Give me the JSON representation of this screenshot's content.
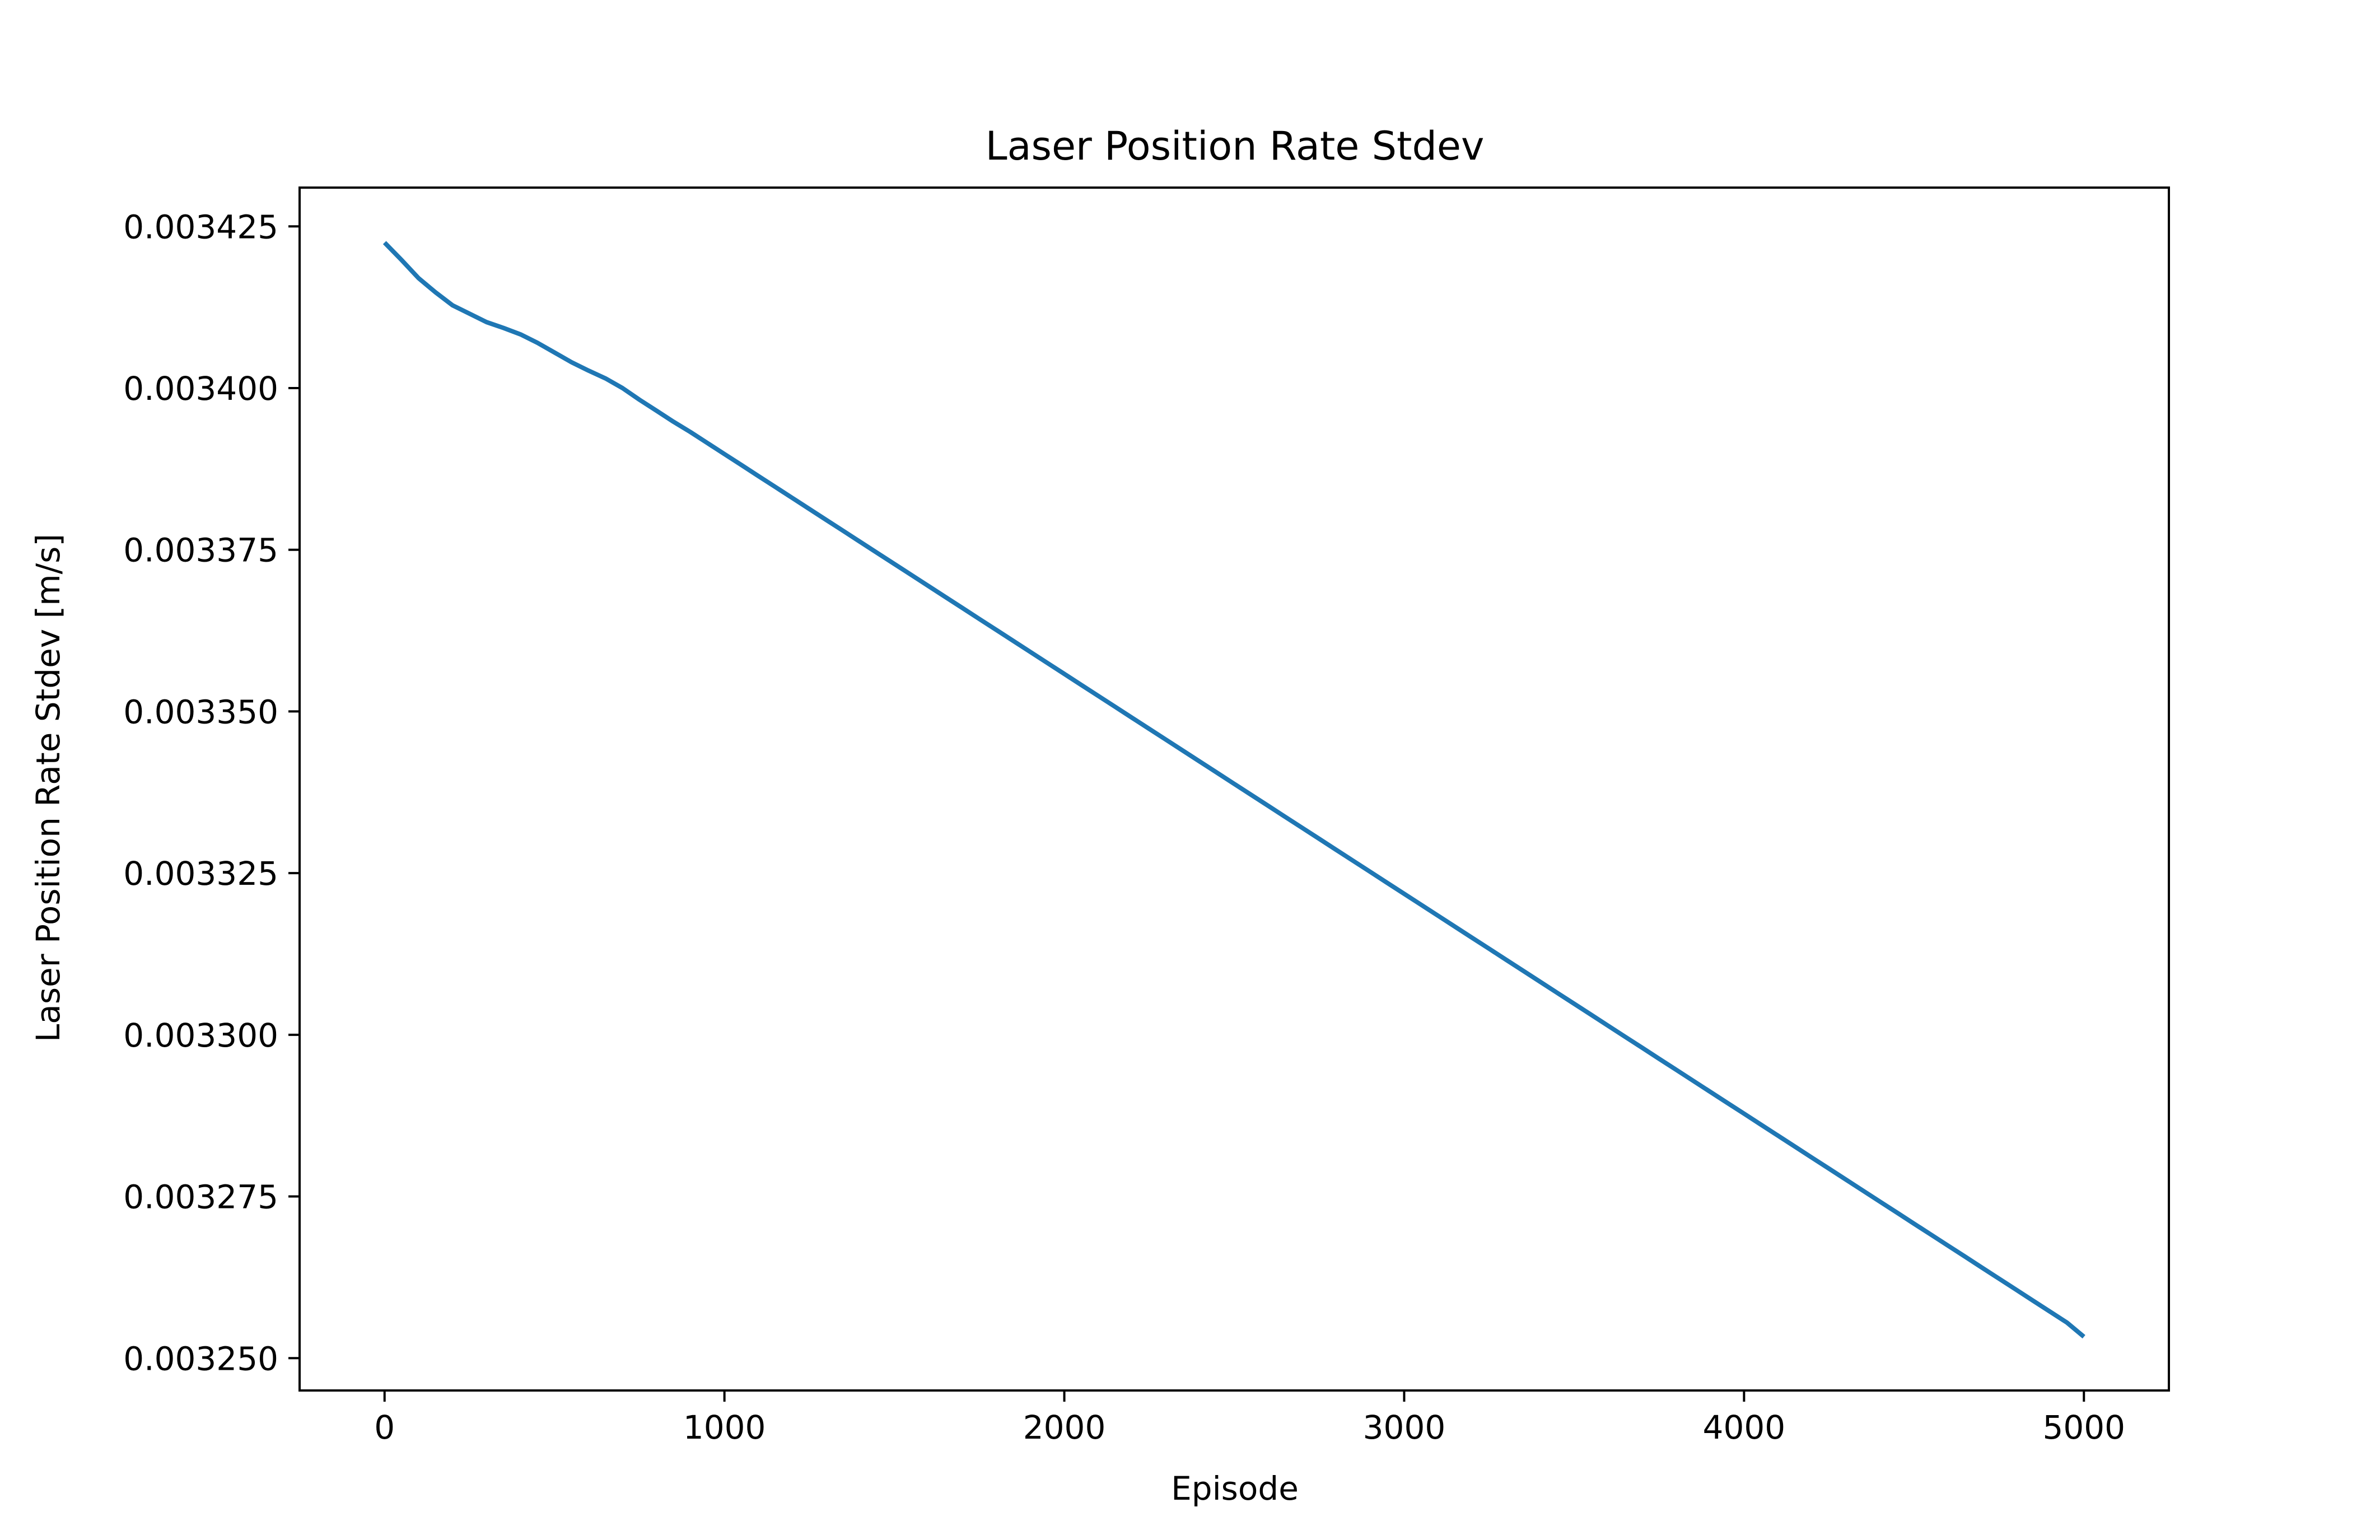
{
  "chart_data": {
    "type": "line",
    "title": "Laser Position Rate Stdev",
    "xlabel": "Episode",
    "ylabel": "Laser Position Rate Stdev [m/s]",
    "xlim": [
      -250,
      5250
    ],
    "ylim": [
      0.003245,
      0.003431
    ],
    "x_ticks": [
      0,
      1000,
      2000,
      3000,
      4000,
      5000
    ],
    "x_tick_labels": [
      "0",
      "1000",
      "2000",
      "3000",
      "4000",
      "5000"
    ],
    "y_ticks": [
      0.00325,
      0.003275,
      0.0033,
      0.003325,
      0.00335,
      0.003375,
      0.0034,
      0.003425
    ],
    "y_tick_labels": [
      "0.003250",
      "0.003275",
      "0.003300",
      "0.003325",
      "0.003350",
      "0.003375",
      "0.003400",
      "0.003425"
    ],
    "grid": false,
    "series_color": "#1f77b4",
    "series": [
      {
        "x": [
          0,
          50,
          100,
          150,
          200,
          250,
          300,
          350,
          400,
          450,
          500,
          550,
          600,
          650,
          700,
          750,
          800,
          850,
          900,
          950,
          1000,
          1050,
          1100,
          1150,
          1200,
          1250,
          1300,
          1350,
          1400,
          1450,
          1500,
          1550,
          1600,
          1650,
          1700,
          1750,
          1800,
          1850,
          1900,
          1950,
          2000,
          2050,
          2100,
          2150,
          2200,
          2250,
          2300,
          2350,
          2400,
          2450,
          2500,
          2550,
          2600,
          2650,
          2700,
          2750,
          2800,
          2850,
          2900,
          2950,
          3000,
          3050,
          3100,
          3150,
          3200,
          3250,
          3300,
          3350,
          3400,
          3450,
          3500,
          3550,
          3600,
          3650,
          3700,
          3750,
          3800,
          3850,
          3900,
          3950,
          4000,
          4050,
          4100,
          4150,
          4200,
          4250,
          4300,
          4350,
          4400,
          4450,
          4500,
          4550,
          4600,
          4650,
          4700,
          4750,
          4800,
          4850,
          4900,
          4950,
          5000
        ],
        "values": [
          0.0034225,
          0.0034198,
          0.003417,
          0.0034148,
          0.0034128,
          0.0034115,
          0.0034102,
          0.0034093,
          0.0034083,
          0.003407,
          0.0034055,
          0.003404,
          0.0034027,
          0.0034015,
          0.0034,
          0.0033982,
          0.0033965,
          0.0033948,
          0.0033932,
          0.0033915,
          0.0033898,
          0.0033881,
          0.0033864,
          0.0033847,
          0.003383,
          0.0033813,
          0.0033796,
          0.0033779,
          0.0033762,
          0.0033745,
          0.0033728,
          0.0033711,
          0.0033694,
          0.0033677,
          0.003366,
          0.0033643,
          0.0033626,
          0.0033609,
          0.0033592,
          0.0033575,
          0.0033558,
          0.0033541,
          0.0033524,
          0.0033507,
          0.003349,
          0.0033473,
          0.0033456,
          0.0033439,
          0.0033422,
          0.0033405,
          0.0033388,
          0.0033371,
          0.0033354,
          0.0033337,
          0.003332,
          0.0033303,
          0.0033286,
          0.0033269,
          0.0033252,
          0.0033235,
          0.0033218,
          0.0033201,
          0.0033184,
          0.0033167,
          0.003315,
          0.0033133,
          0.0033116,
          0.0033099,
          0.0033082,
          0.0033065,
          0.0033048,
          0.0033031,
          0.0033014,
          0.0032997,
          0.003298,
          0.0032963,
          0.0032946,
          0.0032929,
          0.0032912,
          0.0032895,
          0.0032878,
          0.0032861,
          0.0032844,
          0.0032827,
          0.003281,
          0.0032793,
          0.0032776,
          0.0032759,
          0.0032742,
          0.0032725,
          0.0032708,
          0.0032691,
          0.0032674,
          0.0032657,
          0.003264,
          0.0032623,
          0.0032606,
          0.0032589,
          0.0032572,
          0.0032555,
          0.0032533
        ]
      }
    ]
  }
}
